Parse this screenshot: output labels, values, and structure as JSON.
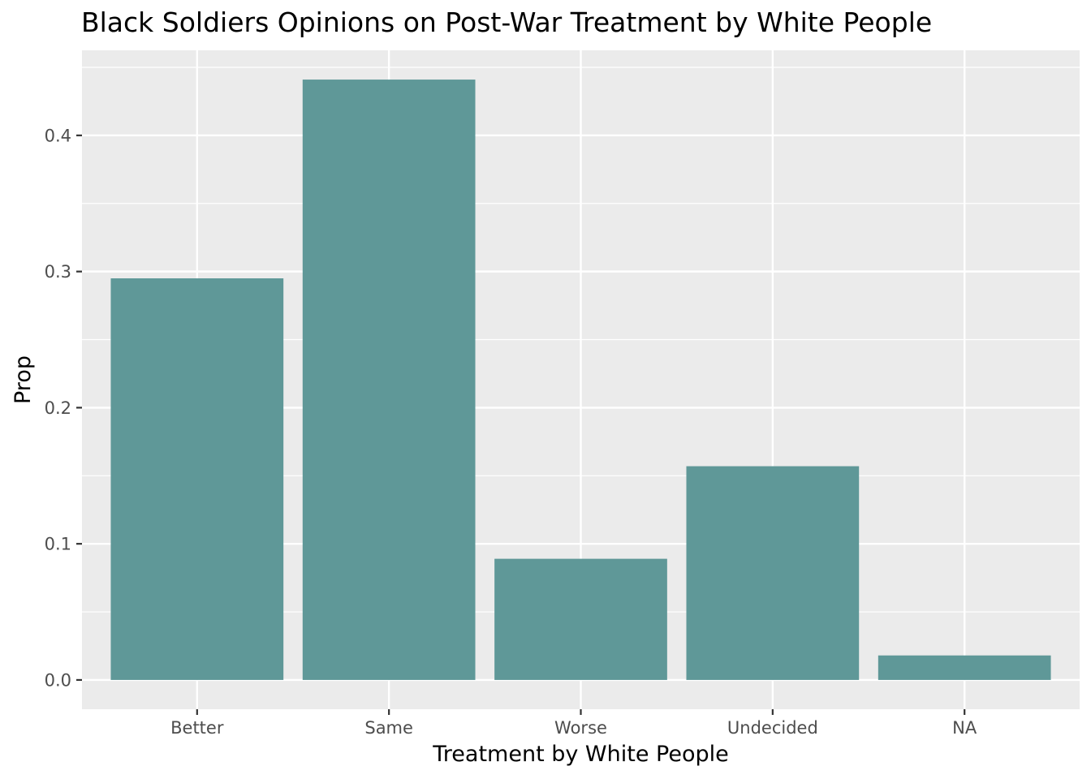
{
  "chart_data": {
    "type": "bar",
    "title": "Black Soldiers Opinions on Post-War Treatment by White People",
    "xlabel": "Treatment by White People",
    "ylabel": "Prop",
    "categories": [
      "Better",
      "Same",
      "Worse",
      "Undecided",
      "NA"
    ],
    "values": [
      0.295,
      0.441,
      0.089,
      0.157,
      0.018
    ],
    "ylim": [
      -0.0215,
      0.4625
    ],
    "yticks": [
      0.0,
      0.1,
      0.2,
      0.3,
      0.4
    ],
    "ytick_labels": [
      "0.0",
      "0.1",
      "0.2",
      "0.3",
      "0.4"
    ],
    "bar_color": "#5f9898",
    "panel_background": "#ebebeb",
    "grid": true,
    "legend": "none"
  }
}
